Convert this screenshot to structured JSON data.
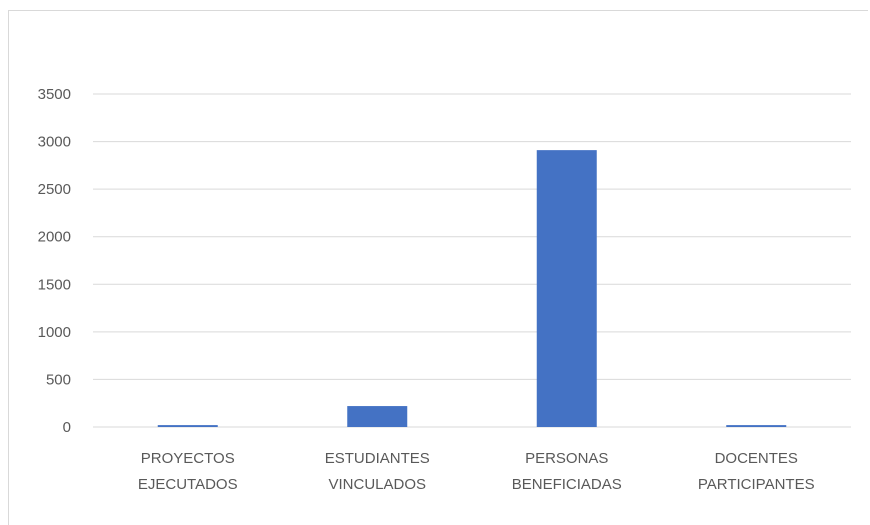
{
  "chart_data": {
    "type": "bar",
    "title": "",
    "xlabel": "",
    "ylabel": "",
    "categories": [
      [
        "PROYECTOS",
        "EJECUTADOS"
      ],
      [
        "ESTUDIANTES",
        "VINCULADOS"
      ],
      [
        "PERSONAS",
        "BENEFICIADAS"
      ],
      [
        "DOCENTES",
        "PARTICIPANTES"
      ]
    ],
    "values": [
      20,
      220,
      2910,
      20
    ],
    "ylim": [
      0,
      3500
    ],
    "yticks": [
      0,
      500,
      1000,
      1500,
      2000,
      2500,
      3000,
      3500
    ],
    "grid": true,
    "legend": "none",
    "bar_color": "#4472c4",
    "grid_color": "#d9d9d9",
    "text_color": "#595959"
  }
}
